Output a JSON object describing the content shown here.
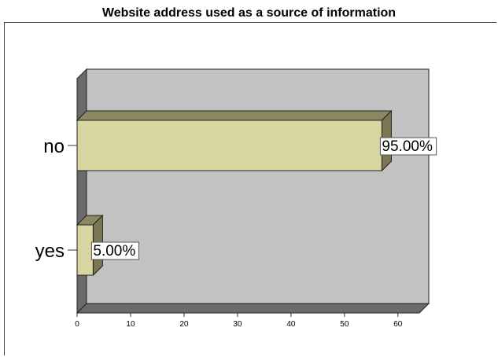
{
  "chart_data": {
    "type": "bar",
    "orientation": "horizontal",
    "title": "Website address used as a source of information",
    "categories": [
      "no",
      "yes"
    ],
    "values": [
      57,
      3
    ],
    "data_labels": [
      "95.00%",
      "5.00%"
    ],
    "x_ticks": [
      0,
      10,
      20,
      30,
      40,
      50,
      60
    ],
    "xlim": [
      0,
      64
    ],
    "grid": false,
    "style": "3d",
    "colors": {
      "bar_front": "#d8d5a0",
      "bar_top": "#8c8962",
      "bar_side": "#7a7752",
      "wall": "#c2c2c2",
      "left_wall": "#6a6a6a",
      "floor": "#6a6a6a",
      "outline": "#222222",
      "label_bg": "#ffffff"
    }
  }
}
